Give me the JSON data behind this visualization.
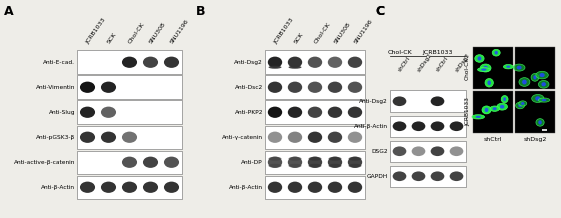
{
  "panel_A": {
    "label": "A",
    "col_labels": [
      "JCRB1033",
      "SCK",
      "Chol-CK",
      "SNU308",
      "SNU1196"
    ],
    "row_labels": [
      "Anti-E-cad.",
      "Anti-Vimentin",
      "Anti-Slug",
      "Anti-pGSK3-β",
      "Anti-active-β-catenin",
      "Anti-β-Actin"
    ],
    "bands": [
      {
        "lane": [
          0,
          0,
          1,
          1,
          1
        ],
        "intensity": [
          "",
          "",
          "#111",
          "#333",
          "#222"
        ],
        "double": [
          false,
          false,
          false,
          false,
          false
        ]
      },
      {
        "lane": [
          1,
          1,
          0,
          0,
          0
        ],
        "intensity": [
          "#000",
          "#111",
          "",
          "",
          ""
        ],
        "double": [
          false,
          false,
          false,
          false,
          false
        ]
      },
      {
        "lane": [
          1,
          1,
          0,
          0,
          0
        ],
        "intensity": [
          "#111",
          "#555",
          "",
          "",
          ""
        ],
        "double": [
          false,
          false,
          false,
          false,
          false
        ]
      },
      {
        "lane": [
          1,
          1,
          1,
          0,
          0
        ],
        "intensity": [
          "#222",
          "#222",
          "#666",
          "",
          ""
        ],
        "double": [
          false,
          false,
          false,
          false,
          false
        ]
      },
      {
        "lane": [
          0,
          0,
          1,
          1,
          1
        ],
        "intensity": [
          "",
          "",
          "#444",
          "#333",
          "#444"
        ],
        "double": [
          false,
          false,
          false,
          false,
          false
        ]
      },
      {
        "lane": [
          1,
          1,
          1,
          1,
          1
        ],
        "intensity": [
          "#222",
          "#222",
          "#222",
          "#222",
          "#222"
        ],
        "double": [
          false,
          false,
          false,
          false,
          false
        ]
      }
    ]
  },
  "panel_B": {
    "label": "B",
    "col_labels": [
      "JCRB1033",
      "SCK",
      "Chol-CK",
      "SNU308",
      "SNU1196"
    ],
    "row_labels": [
      "Anti-Dsg2",
      "Anti-Dsc2",
      "Anti-PKP2",
      "Anti-γ-catenin",
      "Anti-DP",
      "Anti-β-Actin"
    ],
    "bands": [
      {
        "lane": [
          1,
          1,
          1,
          1,
          1
        ],
        "intensity": [
          "#111",
          "#222",
          "#444",
          "#555",
          "#333"
        ]
      },
      {
        "lane": [
          1,
          1,
          1,
          1,
          1
        ],
        "intensity": [
          "#222",
          "#333",
          "#444",
          "#333",
          "#444"
        ]
      },
      {
        "lane": [
          1,
          1,
          1,
          1,
          1
        ],
        "intensity": [
          "#000",
          "#111",
          "#333",
          "#222",
          "#222"
        ]
      },
      {
        "lane": [
          1,
          1,
          1,
          1,
          1
        ],
        "intensity": [
          "#888",
          "#777",
          "#222",
          "#333",
          "#888"
        ]
      },
      {
        "lane": [
          1,
          1,
          1,
          1,
          1
        ],
        "intensity": [
          "#444",
          "#444",
          "#333",
          "#333",
          "#333"
        ]
      },
      {
        "lane": [
          1,
          1,
          1,
          1,
          1
        ],
        "intensity": [
          "#222",
          "#222",
          "#222",
          "#222",
          "#222"
        ]
      }
    ]
  },
  "panel_C_wb": {
    "col_labels_group": [
      "Chol-CK",
      "JCRB1033"
    ],
    "col_labels_sub": [
      "shCtrl",
      "shDsg2",
      "shCtrl",
      "shDsg2"
    ],
    "row_labels": [
      "Anti-Dsg2",
      "Anti-β-Actin",
      "DSG2",
      "GAPDH"
    ],
    "bands": [
      {
        "lane": [
          1,
          0,
          1,
          0
        ],
        "intensity": [
          "#222",
          "",
          "#111",
          ""
        ]
      },
      {
        "lane": [
          1,
          1,
          1,
          1
        ],
        "intensity": [
          "#111",
          "#111",
          "#111",
          "#111"
        ]
      },
      {
        "lane": [
          1,
          1,
          1,
          1
        ],
        "intensity": [
          "#444",
          "#888",
          "#333",
          "#888"
        ]
      },
      {
        "lane": [
          1,
          1,
          1,
          1
        ],
        "intensity": [
          "#333",
          "#333",
          "#333",
          "#333"
        ]
      }
    ]
  },
  "panel_C_if": {
    "row_labels": [
      "Chol-CK",
      "JCRB1033"
    ],
    "col_labels": [
      "shCtrl",
      "shDsg2"
    ]
  },
  "bg_color": "#eeede8",
  "white": "#ffffff",
  "black": "#000000"
}
